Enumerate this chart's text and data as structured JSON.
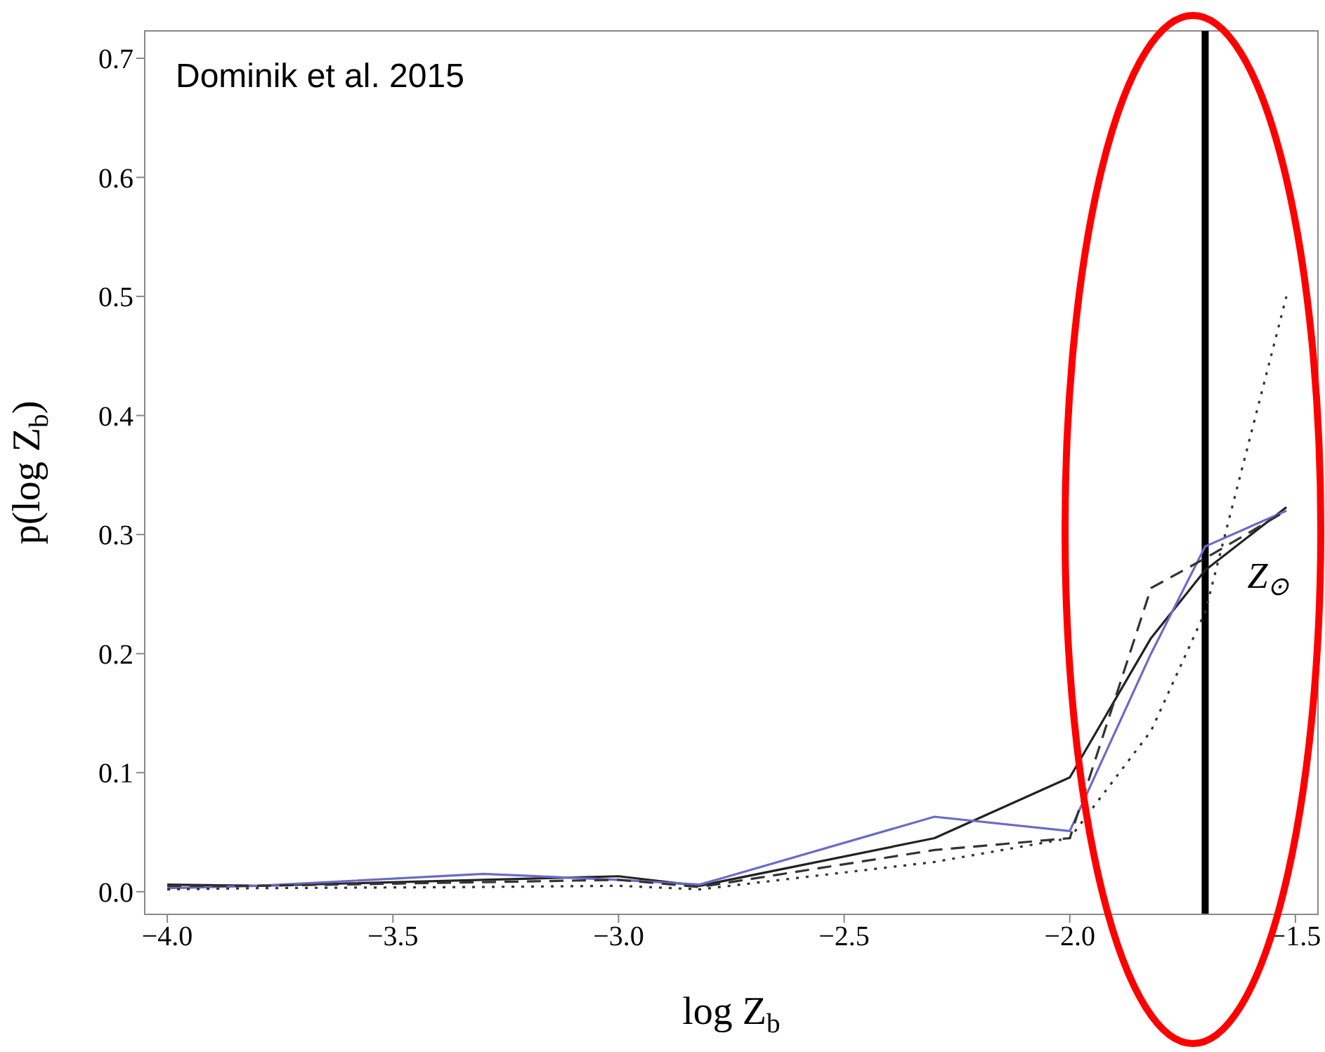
{
  "chart_data": {
    "type": "line",
    "xlabel": "log Z$_{b}$",
    "ylabel": "p(log Z$_{b}$)",
    "x": [
      -4.0,
      -3.8,
      -3.3,
      -3.0,
      -2.82,
      -2.3,
      -2.0,
      -1.82,
      -1.7,
      -1.52
    ],
    "series": [
      {
        "color": "#222222",
        "line_style": "solid",
        "values": [
          0.006,
          0.005,
          0.01,
          0.013,
          0.005,
          0.045,
          0.096,
          0.213,
          0.27,
          0.323
        ]
      },
      {
        "color": "#6b6bc8",
        "line_style": "solid",
        "values": [
          0.003,
          0.005,
          0.015,
          0.01,
          0.006,
          0.063,
          0.051,
          0.2,
          0.29,
          0.32
        ]
      },
      {
        "color": "#333333",
        "line_style": "dashed",
        "values": [
          0.005,
          0.005,
          0.008,
          0.01,
          0.004,
          0.035,
          0.045,
          0.255,
          0.28,
          0.32
        ]
      },
      {
        "color": "#333333",
        "line_style": "dotted",
        "values": [
          0.002,
          0.003,
          0.004,
          0.005,
          0.002,
          0.025,
          0.045,
          0.135,
          0.235,
          0.5
        ]
      }
    ],
    "xlim": [
      -4.05,
      -1.45
    ],
    "xticks": [
      {
        "value": -4.0,
        "label": "−4.0"
      },
      {
        "value": -3.5,
        "label": "−3.5"
      },
      {
        "value": -3.0,
        "label": "−3.0"
      },
      {
        "value": -2.5,
        "label": "−2.5"
      },
      {
        "value": -2.0,
        "label": "−2.0"
      },
      {
        "value": -1.5,
        "label": "−1.5"
      }
    ],
    "ylim": [
      -0.019,
      0.723
    ],
    "yticks": [
      {
        "value": 0,
        "label": "0.0"
      },
      0.1,
      0.2,
      0.3,
      0.4,
      0.5,
      0.6,
      0.7
    ],
    "ref_lines": [
      {
        "axis": "x",
        "value": -1.7,
        "label": "Z$_{⊙}$",
        "color": "#000000"
      }
    ],
    "annotations": [
      "Dominik et al. 2015"
    ],
    "marker": "none"
  }
}
